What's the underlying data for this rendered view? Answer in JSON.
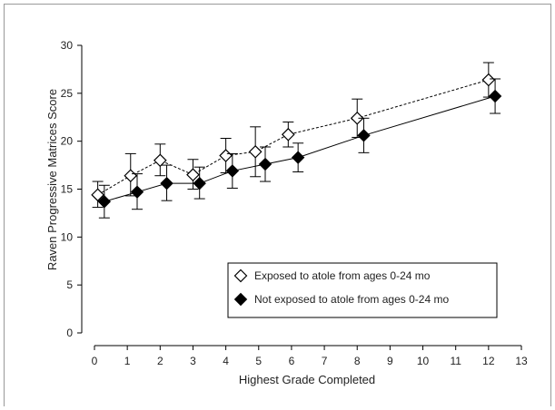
{
  "chart_data": {
    "type": "line",
    "title": "",
    "xlabel": "Highest Grade Completed",
    "ylabel": "Raven Progressive Matrices Score",
    "xlim": [
      0,
      13
    ],
    "ylim": [
      0,
      30
    ],
    "x_ticks": [
      0,
      1,
      2,
      3,
      4,
      5,
      6,
      7,
      8,
      9,
      10,
      11,
      12,
      13
    ],
    "y_ticks": [
      0,
      5,
      10,
      15,
      20,
      25,
      30
    ],
    "x_tick_labels": [
      "0",
      "1",
      "2",
      "3",
      "4",
      "5",
      "6",
      "7",
      "8",
      "9",
      "10",
      "11",
      "12",
      "13"
    ],
    "y_tick_labels": [
      "0",
      "5",
      "10",
      "15",
      "20",
      "25",
      "30"
    ],
    "grid": false,
    "legend_position": "lower-right",
    "series": [
      {
        "name": "Exposed to atole from ages 0-24 mo",
        "marker": "open-diamond",
        "line_style": "dashed",
        "color": "#000000",
        "x": [
          0.1,
          1.1,
          2.0,
          3.0,
          4.0,
          4.9,
          5.9,
          8.0,
          12.0
        ],
        "y": [
          14.4,
          16.4,
          18.0,
          16.5,
          18.5,
          18.9,
          20.7,
          22.4,
          26.4
        ],
        "err_low": [
          13.1,
          14.3,
          16.4,
          15.0,
          16.7,
          16.3,
          19.4,
          20.4,
          24.6
        ],
        "err_high": [
          15.8,
          18.7,
          19.7,
          18.1,
          20.3,
          21.5,
          22.0,
          24.4,
          28.2
        ]
      },
      {
        "name": "Not exposed to atole from ages 0-24 mo",
        "marker": "filled-diamond",
        "line_style": "solid",
        "color": "#000000",
        "x": [
          0.3,
          1.3,
          2.2,
          3.2,
          4.2,
          5.2,
          6.2,
          8.2,
          12.2
        ],
        "y": [
          13.7,
          14.7,
          15.6,
          15.6,
          16.9,
          17.6,
          18.3,
          20.6,
          24.7
        ],
        "err_low": [
          12.0,
          12.9,
          13.8,
          14.0,
          15.1,
          15.8,
          16.8,
          18.8,
          22.9
        ],
        "err_high": [
          15.4,
          16.6,
          17.5,
          17.3,
          18.7,
          19.4,
          19.8,
          22.4,
          26.5
        ]
      }
    ]
  }
}
